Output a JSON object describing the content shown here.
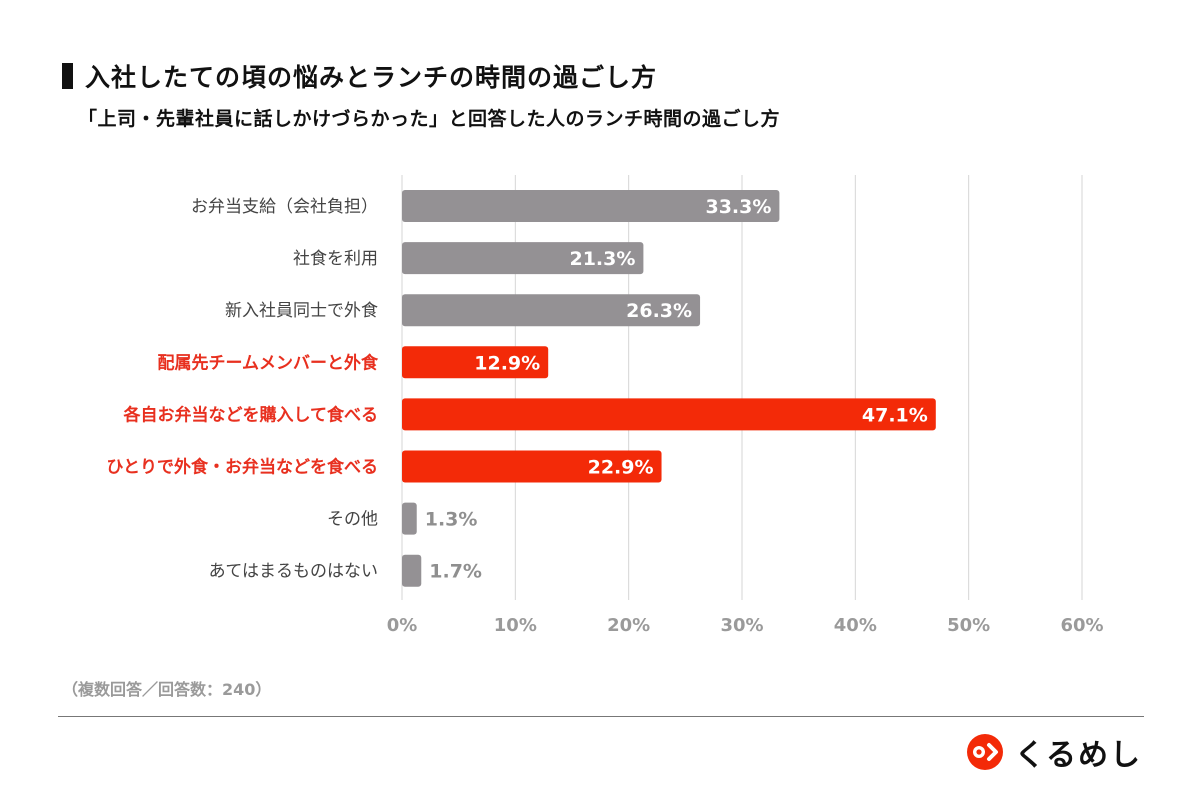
{
  "header": {
    "title": "入社したての頃の悩みとランチの時間の過ごし方",
    "subtitle": "「上司・先輩社員に話しかけづらかった」と回答した人のランチ時間の過ごし方"
  },
  "chart_data": {
    "type": "bar",
    "orientation": "horizontal",
    "title": "入社したての頃の悩みとランチの時間の過ごし方",
    "subtitle": "「上司・先輩社員に話しかけづらかった」と回答した人のランチ時間の過ごし方",
    "categories": [
      "お弁当支給（会社負担）",
      "社食を利用",
      "新入社員同士で外食",
      "配属先チームメンバーと外食",
      "各自お弁当などを購入して食べる",
      "ひとりで外食・お弁当などを食べる",
      "その他",
      "あてはまるものはない"
    ],
    "values": [
      33.3,
      21.3,
      26.3,
      12.9,
      47.1,
      22.9,
      1.3,
      1.7
    ],
    "value_labels": [
      "33.3%",
      "21.3%",
      "26.3%",
      "12.9%",
      "47.1%",
      "22.9%",
      "1.3%",
      "1.7%"
    ],
    "highlighted": [
      false,
      false,
      false,
      true,
      true,
      true,
      false,
      false
    ],
    "xlim": [
      0,
      60
    ],
    "x_ticks": [
      "0%",
      "10%",
      "20%",
      "30%",
      "40%",
      "50%",
      "60%"
    ],
    "grid": true,
    "colors": {
      "default": "#949194",
      "highlight": "#f32a08"
    },
    "xlabel": "",
    "ylabel": ""
  },
  "footer": {
    "note": "（複数回答／回答数：240）",
    "logo_text": "くるめし"
  }
}
